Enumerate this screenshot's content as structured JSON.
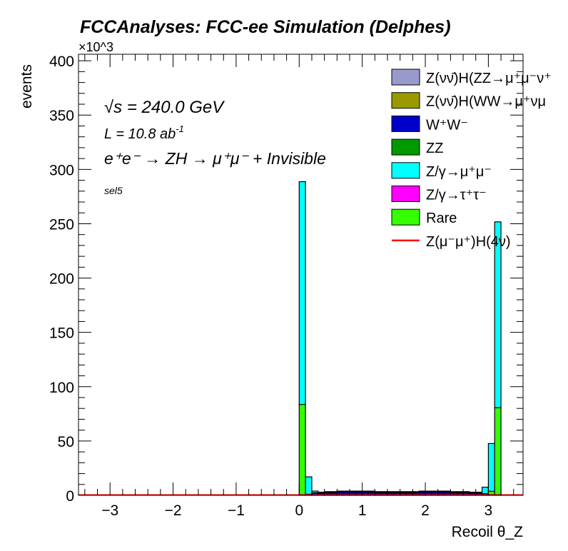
{
  "chart_data": {
    "type": "bar",
    "stacked": true,
    "title": "FCCAnalyses: FCC-ee Simulation (Delphes)",
    "xlabel": "Recoil θ_Z",
    "ylabel": "events",
    "y_multiplier": "×10^3",
    "xlim": [
      -3.5,
      3.55
    ],
    "ylim": [
      0,
      406
    ],
    "bin_width": 0.1,
    "bin_start": 0,
    "xticks": [
      "−3",
      "−2",
      "−1",
      "0",
      "1",
      "2",
      "3"
    ],
    "xtick_values": [
      -3,
      -2,
      -1,
      0,
      1,
      2,
      3
    ],
    "yticks": [
      "0",
      "50",
      "100",
      "150",
      "200",
      "250",
      "300",
      "350",
      "400"
    ],
    "ytick_values": [
      0,
      50,
      100,
      150,
      200,
      250,
      300,
      350,
      400
    ],
    "annotations": {
      "sqrt_s": "√s = 240.0 GeV",
      "lumi": "L = 10.8 ab",
      "lumi_exp": "-1",
      "process": "e⁺e⁻ → ZH → μ⁺μ⁻ + Invisible",
      "selection": "sel5"
    },
    "series": [
      {
        "name": "W⁺W⁻",
        "color": "#0000cc",
        "values": [
          0.5,
          0.5,
          2,
          2,
          2.5,
          2.5,
          3,
          3,
          3,
          3,
          3,
          3,
          2.5,
          2.5,
          2.5,
          2.5,
          2.5,
          2.5,
          2.5,
          3,
          3,
          3,
          3,
          3,
          2.5,
          2.5,
          2.5,
          2,
          2,
          1,
          0.5,
          0.5
        ]
      },
      {
        "name": "ZZ",
        "color": "#009900",
        "values": [
          0.2,
          0.2,
          0.2,
          0.2,
          0.2,
          0.2,
          0.2,
          0.2,
          0.2,
          0.2,
          0.2,
          0.2,
          0.2,
          0.2,
          0.2,
          0.2,
          0.2,
          0.2,
          0.2,
          0.2,
          0.2,
          0.2,
          0.2,
          0.2,
          0.2,
          0.2,
          0.2,
          0.2,
          0.2,
          0.2,
          0.2,
          0.2
        ]
      },
      {
        "name": "Rare",
        "color": "#33ff00",
        "values": [
          83,
          0.3,
          0.2,
          0.2,
          0.2,
          0.2,
          0.2,
          0.2,
          0.2,
          0.2,
          0.2,
          0.2,
          0.2,
          0.2,
          0.2,
          0.2,
          0.2,
          0.2,
          0.2,
          0.2,
          0.2,
          0.2,
          0.2,
          0.2,
          0.2,
          0.2,
          0.2,
          0.2,
          0.2,
          0.3,
          3,
          80
        ]
      },
      {
        "name": "Z/γ→μ⁺μ⁻",
        "color": "#00ffff",
        "values": [
          205,
          16,
          1.5,
          0.5,
          0.5,
          0.5,
          0.5,
          0.5,
          0.5,
          0.5,
          0.5,
          0.5,
          0.5,
          0.5,
          0.5,
          0.5,
          0.5,
          0.5,
          0.5,
          0.5,
          0.5,
          0.5,
          0.5,
          0.5,
          0.5,
          0.5,
          0.5,
          0.5,
          0.5,
          6,
          44,
          171
        ]
      }
    ],
    "legend": [
      {
        "label": "Z(νν̄)H(ZZ→μ⁺μ⁻ν⁺",
        "color": "#9999cc",
        "kind": "box"
      },
      {
        "label": "Z(νν̄)H(WW→μ⁺νμ",
        "color": "#999900",
        "kind": "box"
      },
      {
        "label": "W⁺W⁻",
        "color": "#0000cc",
        "kind": "box"
      },
      {
        "label": "ZZ",
        "color": "#009900",
        "kind": "box"
      },
      {
        "label": "Z/γ→μ⁺μ⁻",
        "color": "#00ffff",
        "kind": "box"
      },
      {
        "label": "Z/γ→τ⁺τ⁻",
        "color": "#ff00ff",
        "kind": "box"
      },
      {
        "label": "Rare",
        "color": "#33ff00",
        "kind": "box"
      },
      {
        "label": "Z(μ⁻μ⁺)H(4ν)",
        "color": "#ff0000",
        "kind": "line"
      }
    ],
    "legend_position": "top-right",
    "signal": {
      "name": "Z(μ⁻μ⁺)H(4ν)",
      "color": "#ff0000",
      "value": 0.3
    }
  }
}
